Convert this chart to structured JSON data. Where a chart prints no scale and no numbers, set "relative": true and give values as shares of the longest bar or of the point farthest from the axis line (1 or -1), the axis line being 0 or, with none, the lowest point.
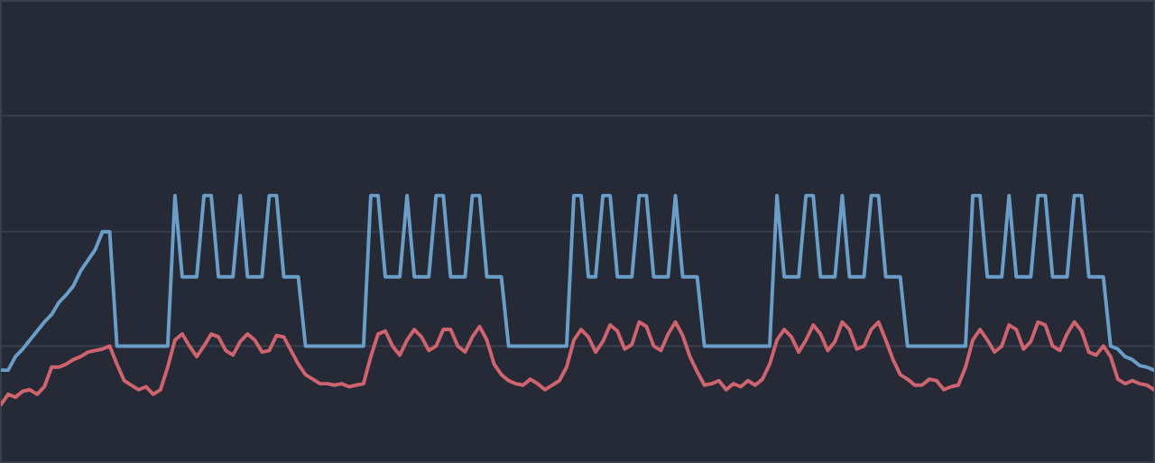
{
  "chart_data": {
    "type": "line",
    "relative": true,
    "ref_lines": [
      {
        "axis": "y",
        "value": 0.76,
        "color": "#3a3f4d"
      },
      {
        "axis": "y",
        "value": 1.53,
        "color": "#3a3f4d"
      }
    ],
    "categories": [
      null,
      null,
      null,
      null,
      null,
      null,
      null,
      null,
      null,
      null,
      null,
      null,
      null,
      null,
      null,
      null,
      null,
      null,
      null,
      null,
      null,
      null,
      null,
      null,
      null,
      null,
      null,
      null,
      null,
      null,
      null,
      null,
      null,
      null,
      null,
      null,
      null,
      null,
      null,
      null,
      null,
      null,
      null,
      null,
      null,
      null,
      null,
      null,
      null,
      null,
      null,
      null,
      null,
      null,
      null,
      null,
      null,
      null,
      null,
      null,
      null,
      null,
      null,
      null,
      null,
      null,
      null,
      null,
      null,
      null,
      null,
      null,
      null,
      null,
      null,
      null,
      null,
      null,
      null,
      null,
      null,
      null,
      null,
      null,
      null,
      null,
      null,
      null,
      null,
      null,
      null,
      null,
      null,
      null,
      null,
      null,
      null,
      null,
      null,
      null,
      null,
      null,
      null,
      null,
      null,
      null,
      null,
      null,
      null,
      null,
      null,
      null,
      null,
      null,
      null,
      null,
      null,
      null,
      null,
      null,
      null,
      null,
      null,
      null,
      null,
      null,
      null,
      null,
      null,
      null,
      null,
      null,
      null,
      null,
      null,
      null,
      null,
      null,
      null,
      null,
      null,
      null,
      null,
      null,
      null,
      null,
      null,
      null,
      null,
      null,
      null,
      null,
      null,
      null,
      null,
      null,
      null,
      null,
      null,
      null
    ],
    "series": [
      {
        "color": "#6a9ec8",
        "values": [
          -0.16,
          -0.16,
          -0.07,
          -0.02,
          0.04,
          0.1,
          0.16,
          0.21,
          0.29,
          0.34,
          0.4,
          0.5,
          0.57,
          0.64,
          0.76,
          0.76,
          0,
          0,
          0,
          0,
          0,
          0,
          0,
          0,
          1,
          0.46,
          0.46,
          0.46,
          1,
          1,
          0.46,
          0.46,
          0.46,
          1,
          0.46,
          0.46,
          0.46,
          1,
          1,
          0.46,
          0.46,
          0.46,
          0,
          0,
          0,
          0,
          0,
          0,
          0,
          0,
          0,
          1,
          1,
          0.46,
          0.46,
          0.46,
          1,
          0.46,
          0.46,
          0.46,
          1,
          1,
          0.46,
          0.46,
          0.46,
          1,
          1,
          0.46,
          0.46,
          0.46,
          0,
          0,
          0,
          0,
          0,
          0,
          0,
          0,
          0,
          1,
          1,
          0.46,
          0.46,
          1,
          1,
          0.46,
          0.46,
          0.46,
          1,
          1,
          0.46,
          0.46,
          0.46,
          1,
          0.46,
          0.46,
          0.46,
          0,
          0,
          0,
          0,
          0,
          0,
          0,
          0,
          0,
          0,
          1,
          0.46,
          0.46,
          0.46,
          1,
          1,
          0.46,
          0.46,
          0.46,
          1,
          0.46,
          0.46,
          0.46,
          1,
          1,
          0.46,
          0.46,
          0.46,
          0,
          0,
          0,
          0,
          0,
          0,
          0,
          0,
          0,
          1,
          1,
          0.46,
          0.46,
          0.46,
          1,
          0.46,
          0.46,
          0.46,
          1,
          1,
          0.46,
          0.46,
          0.46,
          1,
          1,
          0.46,
          0.46,
          0.46,
          0,
          -0.02,
          -0.07,
          -0.09,
          -0.13,
          -0.14,
          -0.16
        ]
      },
      {
        "color": "#d0646e",
        "values": [
          -0.39,
          -0.32,
          -0.34,
          -0.3,
          -0.29,
          -0.32,
          -0.27,
          -0.14,
          -0.14,
          -0.12,
          -0.09,
          -0.07,
          -0.04,
          -0.03,
          -0.02,
          0,
          -0.12,
          -0.23,
          -0.26,
          -0.29,
          -0.27,
          -0.32,
          -0.29,
          -0.14,
          0.04,
          0.08,
          0,
          -0.07,
          0,
          0.08,
          0.06,
          -0.03,
          -0.06,
          0.03,
          0.08,
          0.04,
          -0.04,
          -0.03,
          0.07,
          0.06,
          -0.03,
          -0.12,
          -0.19,
          -0.22,
          -0.25,
          -0.25,
          -0.26,
          -0.25,
          -0.27,
          -0.26,
          -0.25,
          -0.07,
          0.08,
          0.1,
          0,
          -0.06,
          0.04,
          0.11,
          0.06,
          -0.03,
          0,
          0.11,
          0.11,
          0,
          -0.04,
          0.06,
          0.13,
          0.04,
          -0.12,
          -0.19,
          -0.23,
          -0.25,
          -0.26,
          -0.22,
          -0.25,
          -0.29,
          -0.26,
          -0.23,
          -0.14,
          0.04,
          0.11,
          0.06,
          -0.04,
          0.03,
          0.14,
          0.1,
          -0.02,
          0.01,
          0.16,
          0.13,
          0,
          -0.03,
          0.08,
          0.16,
          0.07,
          -0.07,
          -0.17,
          -0.26,
          -0.25,
          -0.23,
          -0.29,
          -0.25,
          -0.27,
          -0.23,
          -0.26,
          -0.22,
          -0.12,
          0.04,
          0.11,
          0.06,
          -0.04,
          0.04,
          0.14,
          0.08,
          -0.03,
          0.03,
          0.16,
          0.11,
          -0.02,
          0,
          0.11,
          0.16,
          0.04,
          -0.09,
          -0.19,
          -0.22,
          -0.26,
          -0.26,
          -0.22,
          -0.23,
          -0.29,
          -0.27,
          -0.26,
          -0.14,
          0.04,
          0.11,
          0.04,
          -0.04,
          0,
          0.14,
          0.11,
          -0.02,
          0.03,
          0.16,
          0.14,
          0,
          -0.03,
          0.08,
          0.16,
          0.1,
          -0.04,
          -0.06,
          0,
          -0.07,
          -0.22,
          -0.25,
          -0.23,
          -0.25,
          -0.26,
          -0.29
        ]
      }
    ]
  }
}
